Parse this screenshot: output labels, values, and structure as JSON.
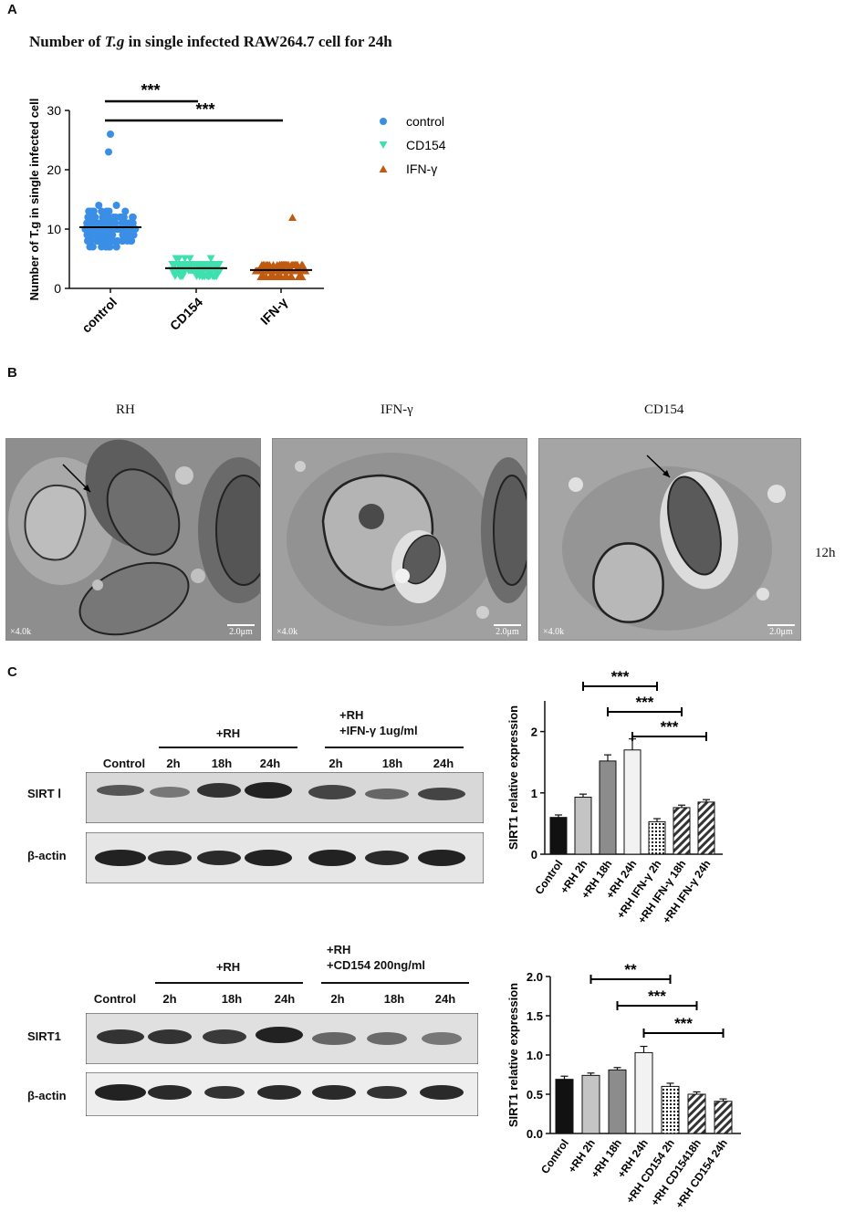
{
  "panel_a": {
    "letter": "A",
    "title_prefix": "Number of ",
    "title_italic": "T.g",
    "title_suffix": " in single infected RAW264.7 cell for 24h"
  },
  "panel_b": {
    "letter": "B",
    "columns": [
      "RH",
      "IFN-γ",
      "CD154"
    ],
    "row_label": "12h",
    "magnification": "×4.0k",
    "scale_label": "2.0μm"
  },
  "panel_c": {
    "letter": "C",
    "blot1": {
      "group_rh": "+RH",
      "group_treat_line1": "+RH",
      "group_treat_line2": "+IFN-γ 1ug/ml",
      "lanes": [
        "Control",
        "2h",
        "18h",
        "24h",
        "2h",
        "18h",
        "24h"
      ],
      "row1": "SIRT Ⅰ",
      "row2": "β-actin"
    },
    "blot2": {
      "group_rh": "+RH",
      "group_treat_line1": "+RH",
      "group_treat_line2": "+CD154 200ng/ml",
      "lanes": [
        "Control",
        "2h",
        "18h",
        "24h",
        "2h",
        "18h",
        "24h"
      ],
      "row1": "SIRT1",
      "row2": "β-actin"
    }
  },
  "chart_data": [
    {
      "type": "scatter",
      "title": "Number of T.g in single infected RAW264.7 cell for 24h",
      "xlabel": "",
      "ylabel": "Number of T.g in single infected cell",
      "categories": [
        "control",
        "CD154",
        "IFN-γ"
      ],
      "ylim": [
        0,
        30
      ],
      "yticks": [
        0,
        10,
        20,
        30
      ],
      "series": [
        {
          "name": "control",
          "color": "#3a8ee6",
          "marker": "circle",
          "mean": 10.3,
          "min": 4,
          "max": 26
        },
        {
          "name": "CD154",
          "color": "#3ee0b0",
          "marker": "triangle-down",
          "mean": 3.4,
          "min": 0,
          "max": 8
        },
        {
          "name": "IFN-γ",
          "color": "#c05a10",
          "marker": "triangle-up",
          "mean": 3.1,
          "min": 0,
          "max": 12
        }
      ],
      "significance": [
        {
          "from": "control",
          "to": "CD154",
          "label": "***"
        },
        {
          "from": "control",
          "to": "IFN-γ",
          "label": "***"
        }
      ],
      "legend": "right"
    },
    {
      "type": "bar",
      "ylabel": "SIRT1 relative expression",
      "categories": [
        "Control",
        "+RH 2h",
        "+RH 18h",
        "+RH 24h",
        "+RH IFN-γ 2h",
        "+RH IFN-γ 18h",
        "+RH IFN-γ 24h"
      ],
      "values": [
        0.6,
        0.93,
        1.52,
        1.7,
        0.53,
        0.76,
        0.85
      ],
      "errors": [
        0.04,
        0.05,
        0.1,
        0.18,
        0.05,
        0.04,
        0.04
      ],
      "ylim": [
        0,
        2.5
      ],
      "yticks": [
        0,
        1,
        2
      ],
      "fills": [
        "black",
        "lightgray",
        "gray",
        "white",
        "dots",
        "stripes",
        "stripes"
      ],
      "significance": [
        {
          "from": "+RH 2h",
          "to": "+RH IFN-γ 2h",
          "label": "***"
        },
        {
          "from": "+RH 18h",
          "to": "+RH IFN-γ 18h",
          "label": "***"
        },
        {
          "from": "+RH 24h",
          "to": "+RH IFN-γ 24h",
          "label": "***"
        }
      ]
    },
    {
      "type": "bar",
      "ylabel": "SIRT1 relative expression",
      "categories": [
        "Control",
        "+RH 2h",
        "+RH 18h",
        "+RH 24h",
        "+RH CD154 2h",
        "+RH CD15418h",
        "+RH CD154 24h"
      ],
      "values": [
        0.69,
        0.74,
        0.81,
        1.03,
        0.6,
        0.5,
        0.41
      ],
      "errors": [
        0.04,
        0.03,
        0.03,
        0.08,
        0.04,
        0.03,
        0.03
      ],
      "ylim": [
        0,
        2.0
      ],
      "yticks": [
        0.0,
        0.5,
        1.0,
        1.5,
        2.0
      ],
      "tick_labels": [
        "0.0",
        "0.5",
        "1.0",
        "1.5",
        "2.0"
      ],
      "fills": [
        "black",
        "lightgray",
        "gray",
        "white",
        "dots",
        "stripes",
        "stripes"
      ],
      "significance": [
        {
          "from": "+RH 2h",
          "to": "+RH CD154 2h",
          "label": "**"
        },
        {
          "from": "+RH 18h",
          "to": "+RH CD15418h",
          "label": "***"
        },
        {
          "from": "+RH 24h",
          "to": "+RH CD154 24h",
          "label": "***"
        }
      ]
    }
  ]
}
